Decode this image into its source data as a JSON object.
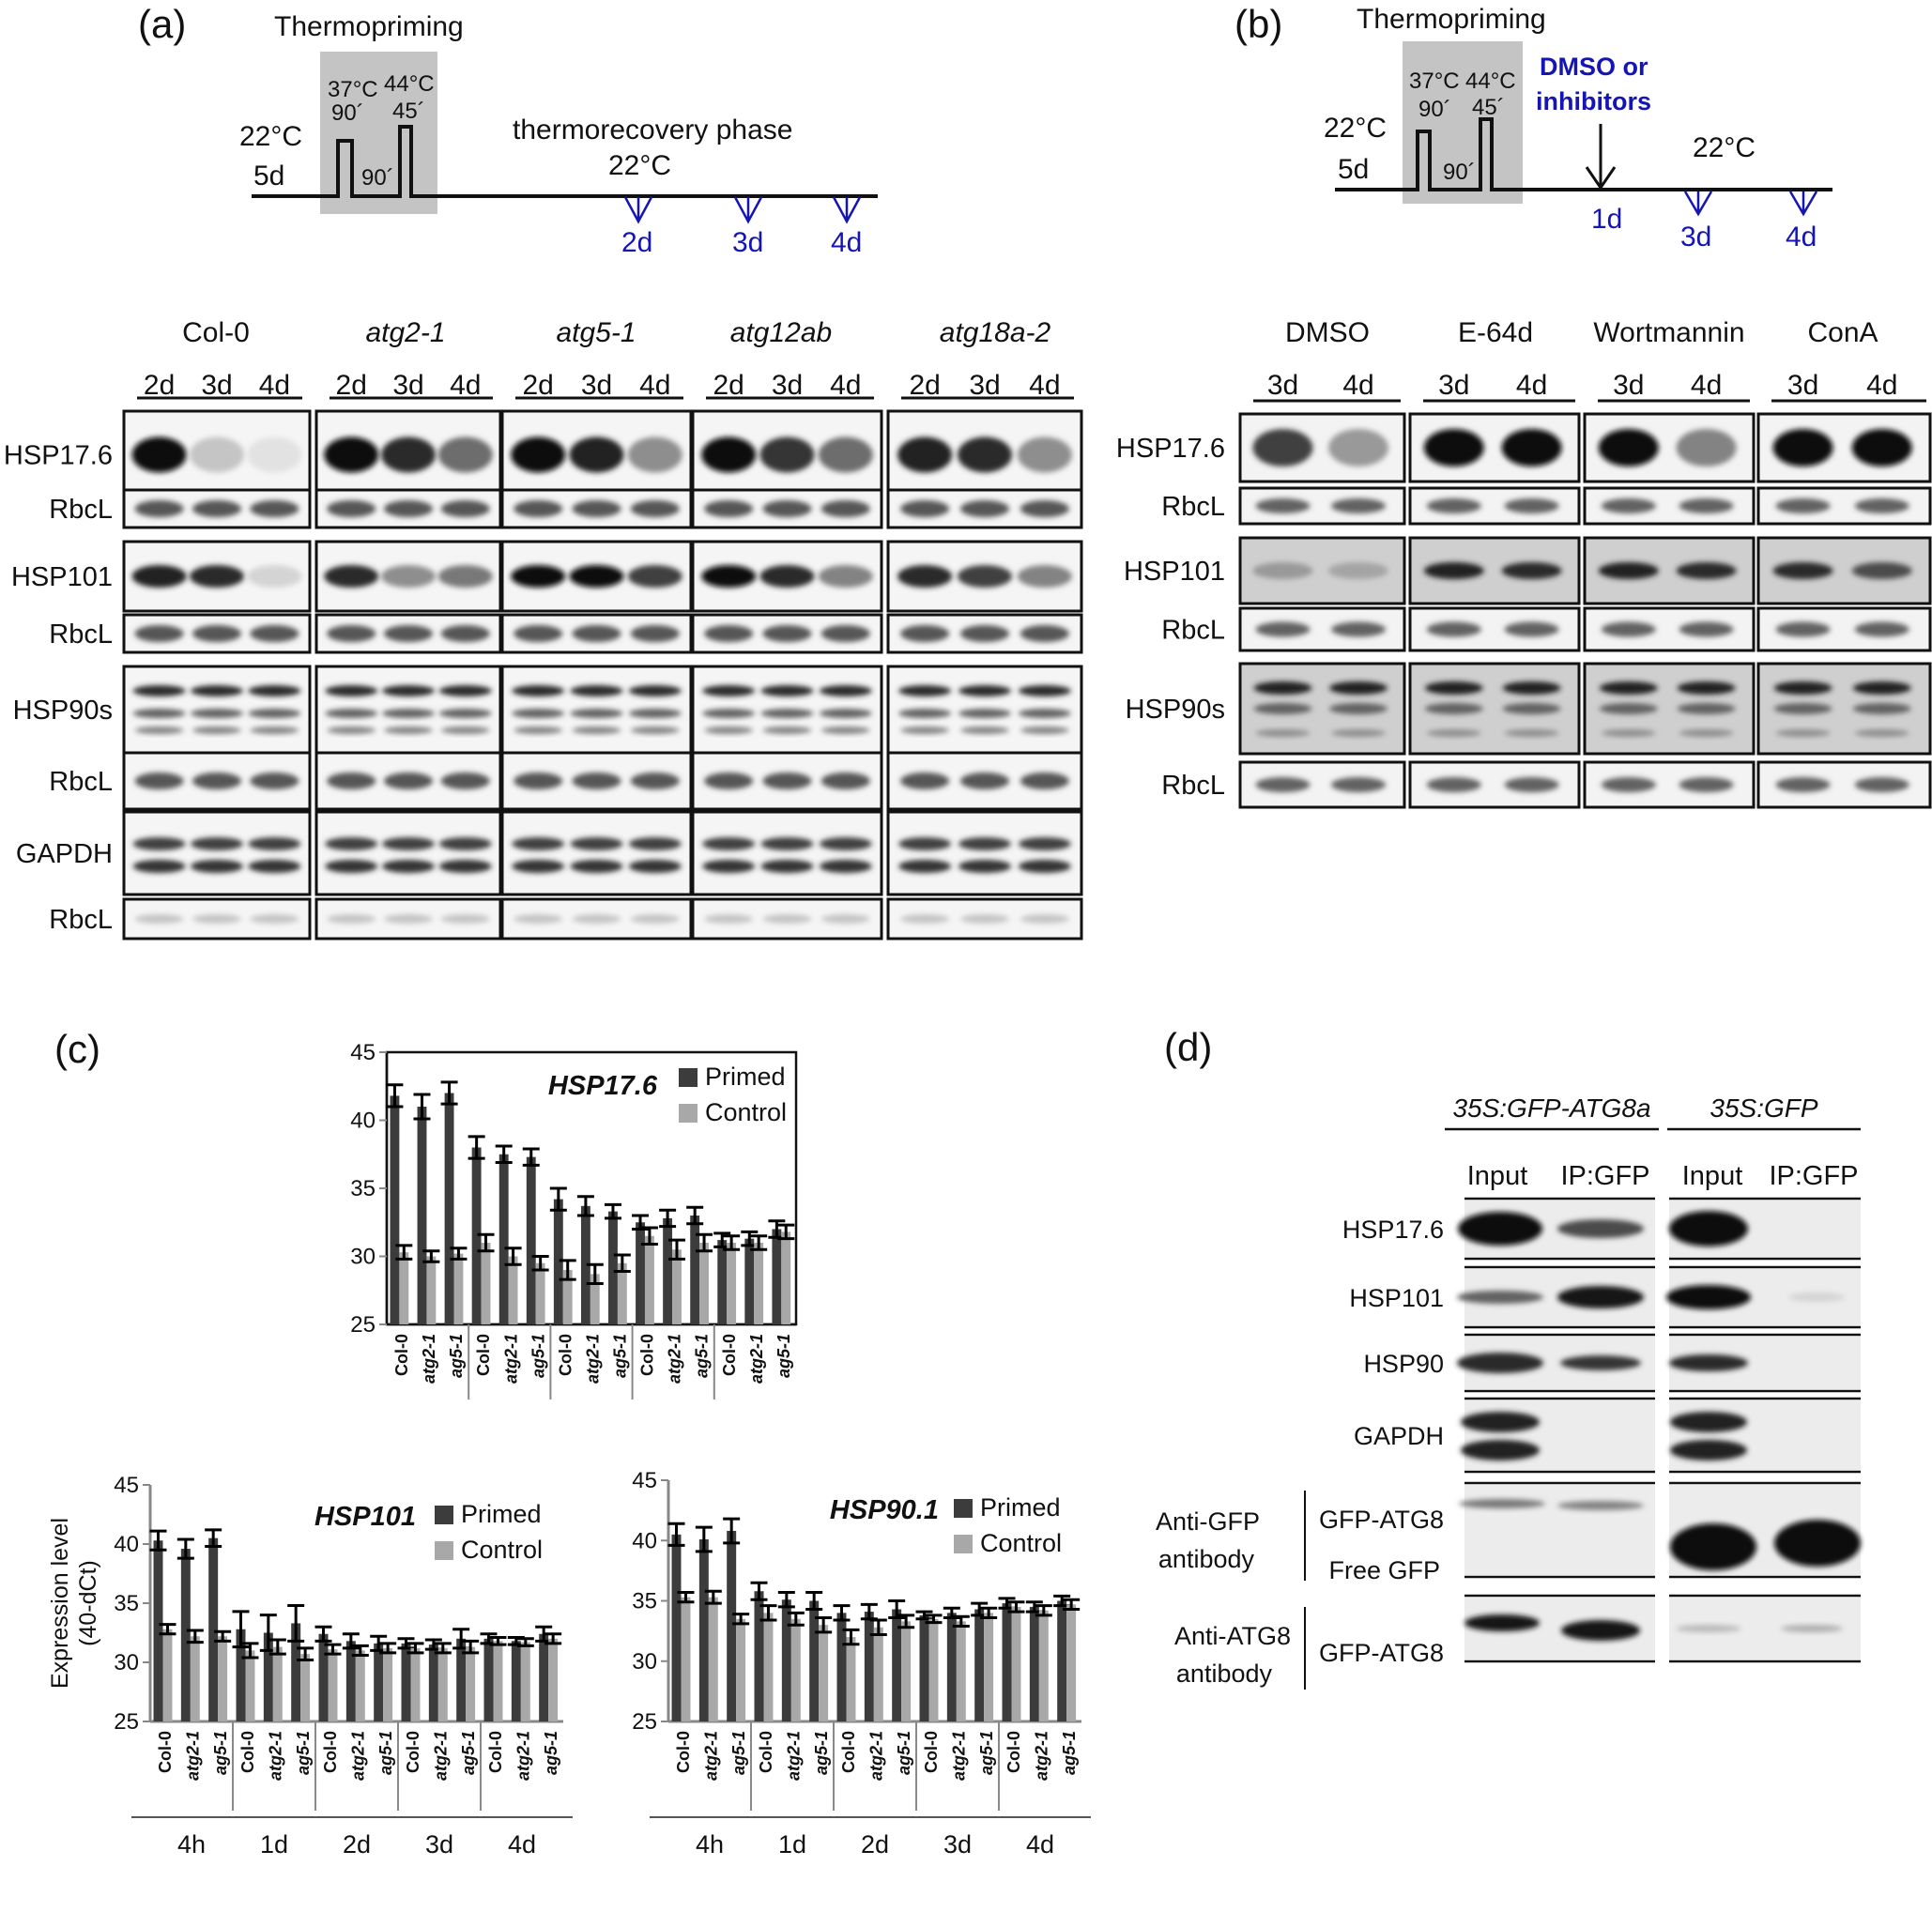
{
  "panel_a": {
    "label": "(a)",
    "timeline": {
      "thermopriming": "Thermopriming",
      "pre_temp": "22°C",
      "pre_dur": "5d",
      "pulse1_temp": "37°C",
      "pulse1_dur": "90´",
      "gap_dur": "90´",
      "pulse2_temp": "44°C",
      "pulse2_dur": "45´",
      "phase": "thermorecovery phase",
      "phase_temp": "22°C",
      "samples": [
        "2d",
        "3d",
        "4d"
      ]
    },
    "blot": {
      "genotypes": [
        "Col-0",
        "atg2-1",
        "atg5-1",
        "atg12ab",
        "atg18a-2"
      ],
      "timepoints": [
        "2d",
        "3d",
        "4d"
      ],
      "rows": [
        {
          "label": "HSP17.6",
          "bands": [
            [
              1,
              0.15,
              0.02
            ],
            [
              1,
              0.85,
              0.55
            ],
            [
              1,
              0.9,
              0.4
            ],
            [
              1,
              0.8,
              0.55
            ],
            [
              0.9,
              0.85,
              0.4
            ]
          ]
        },
        {
          "label": "RbcL"
        },
        {
          "label": "HSP101",
          "bands": [
            [
              0.9,
              0.85,
              0.08
            ],
            [
              0.85,
              0.4,
              0.5
            ],
            [
              1,
              1,
              0.75
            ],
            [
              1,
              0.85,
              0.45
            ],
            [
              0.85,
              0.75,
              0.45
            ]
          ]
        },
        {
          "label": "RbcL"
        },
        {
          "label": "HSP90s"
        },
        {
          "label": "RbcL"
        },
        {
          "label": "GAPDH"
        },
        {
          "label": "RbcL"
        }
      ]
    }
  },
  "panel_b": {
    "label": "(b)",
    "timeline": {
      "thermopriming": "Thermopriming",
      "pre_temp": "22°C",
      "pre_dur": "5d",
      "pulse1_temp": "37°C",
      "pulse1_dur": "90´",
      "gap_dur": "90´",
      "pulse2_temp": "44°C",
      "pulse2_dur": "45´",
      "treatment_line1": "DMSO or",
      "treatment_line2": "inhibitors",
      "phase_temp": "22°C",
      "treatment_day": "1d",
      "samples": [
        "3d",
        "4d"
      ]
    },
    "blot": {
      "treatments": [
        "DMSO",
        "E-64d",
        "Wortmannin",
        "ConA"
      ],
      "timepoints": [
        "3d",
        "4d"
      ],
      "rows": [
        {
          "label": "HSP17.6",
          "bands": [
            [
              0.75,
              0.35
            ],
            [
              1,
              1
            ],
            [
              1,
              0.45
            ],
            [
              1,
              1
            ]
          ]
        },
        {
          "label": "RbcL"
        },
        {
          "label": "HSP101",
          "bands": [
            [
              0.35,
              0.3
            ],
            [
              0.9,
              0.85
            ],
            [
              0.9,
              0.85
            ],
            [
              0.85,
              0.7
            ]
          ]
        },
        {
          "label": "RbcL"
        },
        {
          "label": "HSP90s"
        },
        {
          "label": "RbcL"
        }
      ]
    }
  },
  "panel_c": {
    "label": "(c)"
  },
  "panel_d": {
    "label": "(d)",
    "constructs": [
      "35S:GFP-ATG8a",
      "35S:GFP"
    ],
    "lanes": [
      "Input",
      "IP:GFP",
      "Input",
      "IP:GFP"
    ],
    "rows": [
      "HSP17.6",
      "HSP101",
      "HSP90",
      "GAPDH"
    ],
    "anti_gfp_line1": "Anti-GFP",
    "anti_gfp_line2": "antibody",
    "anti_gfp_bands": [
      "GFP-ATG8",
      "Free GFP"
    ],
    "anti_atg8_line1": "Anti-ATG8",
    "anti_atg8_line2": "antibody",
    "anti_atg8_band": "GFP-ATG8"
  },
  "colors": {
    "primed": "#3c3c3c",
    "control": "#a8a8a8",
    "timeline_blue": "#1515b4"
  },
  "chart_data": [
    {
      "type": "bar",
      "title": "HSP17.6",
      "ylabel": "",
      "ylim": [
        25,
        45
      ],
      "yticks": [
        25,
        30,
        35,
        40,
        45
      ],
      "groups": [
        "",
        "",
        "",
        "",
        ""
      ],
      "genotype_labels": [
        "Col-0",
        "atg2-1",
        "ag5-1"
      ],
      "series": [
        {
          "name": "Primed",
          "values": [
            41.8,
            41.0,
            42.0,
            38.0,
            37.5,
            37.3,
            34.2,
            33.7,
            33.3,
            32.5,
            32.8,
            33.0,
            31.2,
            31.3,
            32.0
          ],
          "errors": [
            0.8,
            0.9,
            0.8,
            0.8,
            0.6,
            0.6,
            0.8,
            0.7,
            0.5,
            0.5,
            0.6,
            0.6,
            0.5,
            0.5,
            0.6
          ]
        },
        {
          "name": "Control",
          "values": [
            30.3,
            30.0,
            30.2,
            31.0,
            30.0,
            29.5,
            29.0,
            28.7,
            29.5,
            31.5,
            30.5,
            31.0,
            31.0,
            31.0,
            31.8
          ],
          "errors": [
            0.5,
            0.4,
            0.4,
            0.6,
            0.6,
            0.5,
            0.7,
            0.7,
            0.6,
            0.6,
            0.7,
            0.6,
            0.5,
            0.5,
            0.5
          ]
        }
      ]
    },
    {
      "type": "bar",
      "title": "HSP101",
      "ylabel": "Expression level",
      "ylabel2": "(40-dCt)",
      "ylim": [
        25,
        45
      ],
      "yticks": [
        25,
        30,
        35,
        40,
        45
      ],
      "groups": [
        "4h",
        "1d",
        "2d",
        "3d",
        "4d"
      ],
      "genotype_labels": [
        "Col-0",
        "atg2-1",
        "ag5-1"
      ],
      "series": [
        {
          "name": "Primed",
          "values": [
            40.3,
            39.6,
            40.5,
            32.8,
            32.5,
            33.3,
            32.4,
            31.8,
            31.6,
            31.6,
            31.5,
            32.0,
            32.0,
            31.8,
            32.4
          ],
          "errors": [
            0.8,
            0.8,
            0.7,
            1.5,
            1.5,
            1.5,
            0.6,
            0.6,
            0.6,
            0.4,
            0.4,
            0.8,
            0.4,
            0.3,
            0.6
          ]
        },
        {
          "name": "Control",
          "values": [
            32.8,
            32.2,
            32.2,
            31.0,
            31.3,
            30.7,
            31.1,
            31.0,
            31.2,
            31.2,
            31.2,
            31.3,
            31.8,
            31.7,
            32.0
          ],
          "errors": [
            0.4,
            0.5,
            0.4,
            0.6,
            0.6,
            0.5,
            0.4,
            0.4,
            0.4,
            0.4,
            0.4,
            0.5,
            0.3,
            0.3,
            0.4
          ]
        }
      ]
    },
    {
      "type": "bar",
      "title": "HSP90.1",
      "ylabel": "",
      "ylim": [
        25,
        45
      ],
      "yticks": [
        25,
        30,
        35,
        40,
        45
      ],
      "groups": [
        "4h",
        "1d",
        "2d",
        "3d",
        "4d"
      ],
      "genotype_labels": [
        "Col-0",
        "atg2-1",
        "ag5-1"
      ],
      "series": [
        {
          "name": "Primed",
          "values": [
            40.5,
            40.1,
            40.8,
            35.8,
            35.1,
            35.0,
            34.0,
            34.1,
            34.3,
            33.8,
            34.0,
            34.3,
            34.8,
            34.5,
            35.0
          ],
          "errors": [
            0.9,
            1.0,
            1.0,
            0.7,
            0.6,
            0.7,
            0.6,
            0.6,
            0.7,
            0.3,
            0.4,
            0.5,
            0.4,
            0.4,
            0.4
          ]
        },
        {
          "name": "Control",
          "values": [
            35.3,
            35.3,
            33.5,
            34.0,
            33.5,
            33.0,
            32.0,
            32.8,
            33.3,
            33.5,
            33.3,
            34.0,
            34.5,
            34.2,
            34.7
          ],
          "errors": [
            0.4,
            0.5,
            0.4,
            0.6,
            0.5,
            0.6,
            0.6,
            0.6,
            0.5,
            0.3,
            0.4,
            0.4,
            0.4,
            0.4,
            0.4
          ]
        }
      ]
    }
  ]
}
